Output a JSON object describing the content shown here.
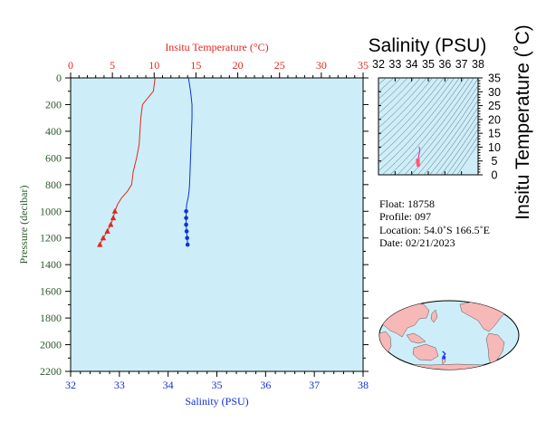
{
  "colors": {
    "panel_bg": "#cdeef8",
    "temperature": "#e0281e",
    "salinity": "#1030d8",
    "pressure_axis": "#2a5a2a",
    "ts_curve": "#cc33cc",
    "ts_point": "#ff5a6e",
    "ts_isoline": "#445566",
    "land": "#f7b8b8",
    "ocean": "#cdeef8",
    "float_marker": "#1a3cff"
  },
  "chart_data": [
    {
      "type": "line",
      "name": "profile",
      "x_top_label": "Insitu Temperature (°C)",
      "x_top_ticks": [
        "0",
        "5",
        "10",
        "15",
        "20",
        "25",
        "30",
        "35"
      ],
      "x_top_lim": [
        0,
        35
      ],
      "x_bottom_label": "Salinity (PSU)",
      "x_bottom_ticks": [
        "32",
        "33",
        "34",
        "35",
        "36",
        "37",
        "38"
      ],
      "x_bottom_lim": [
        32,
        38
      ],
      "ylabel": "Pressure (decibar)",
      "y_ticks": [
        "0",
        "200",
        "400",
        "600",
        "800",
        "1000",
        "1200",
        "1400",
        "1600",
        "1800",
        "2000",
        "2200"
      ],
      "ylim": [
        0,
        2200
      ],
      "y_reversed": true,
      "grid": false,
      "temperature": {
        "pressure": [
          5,
          100,
          200,
          300,
          400,
          500,
          600,
          700,
          800,
          850,
          900,
          950,
          1000,
          1050,
          1100,
          1150,
          1200,
          1250
        ],
        "value": [
          10.1,
          9.9,
          8.6,
          8.4,
          8.3,
          8.2,
          7.9,
          7.5,
          7.3,
          6.8,
          6.1,
          5.6,
          5.3,
          5.1,
          4.8,
          4.4,
          3.9,
          3.5
        ],
        "markers_from_index": 12
      },
      "salinity": {
        "pressure": [
          5,
          100,
          200,
          300,
          400,
          500,
          600,
          700,
          800,
          850,
          900,
          950,
          1000,
          1050,
          1100,
          1150,
          1200,
          1250
        ],
        "value": [
          34.42,
          34.46,
          34.49,
          34.49,
          34.48,
          34.47,
          34.46,
          34.45,
          34.44,
          34.43,
          34.41,
          34.38,
          34.37,
          34.37,
          34.37,
          34.38,
          34.39,
          34.4
        ],
        "markers_from_index": 12
      }
    },
    {
      "type": "line",
      "name": "ts_diagram",
      "title": "Salinity (PSU)",
      "ylabel": "Insitu Temperature (˚C)",
      "x_ticks": [
        "32",
        "33",
        "34",
        "35",
        "36",
        "37",
        "38"
      ],
      "xlim": [
        32,
        38
      ],
      "y_ticks": [
        "0",
        "5",
        "10",
        "15",
        "20",
        "25",
        "30",
        "35"
      ],
      "ylim": [
        0,
        35
      ],
      "salinity": [
        34.42,
        34.46,
        34.49,
        34.48,
        34.46,
        34.44,
        34.41,
        34.37,
        34.37,
        34.38,
        34.4
      ],
      "temperature": [
        10.1,
        9.9,
        8.6,
        8.3,
        7.9,
        7.3,
        6.1,
        5.3,
        5.1,
        4.4,
        3.5
      ]
    }
  ],
  "float_info": {
    "float": "Float:  18758",
    "profile": "Profile:  097",
    "location": "Location:  54.0˚S  166.5˚E",
    "date": "Date:  02/21/2023"
  },
  "map": {
    "projection": "world",
    "float_lat": -54.0,
    "float_lon": 166.5
  }
}
